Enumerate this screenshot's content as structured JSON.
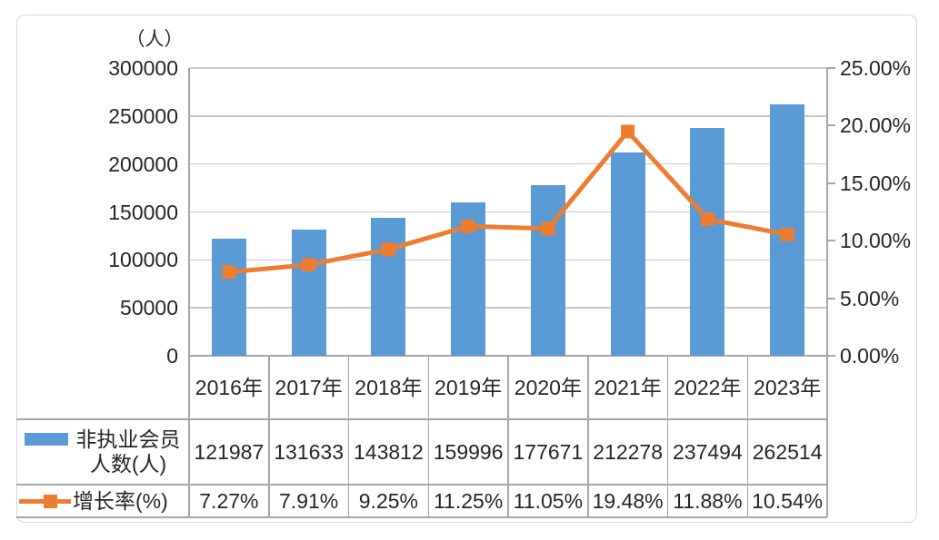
{
  "chart_data": {
    "type": "combo-bar-line",
    "categories": [
      "2016年",
      "2017年",
      "2018年",
      "2019年",
      "2020年",
      "2021年",
      "2022年",
      "2023年"
    ],
    "series": [
      {
        "name": "非执业会员人数(人)",
        "type": "bar",
        "axis": "left",
        "color": "#5b9bd5",
        "values": [
          121987,
          131633,
          143812,
          159996,
          177671,
          212278,
          237494,
          262514
        ],
        "labels": [
          "121987",
          "131633",
          "143812",
          "159996",
          "177671",
          "212278",
          "237494",
          "262514"
        ]
      },
      {
        "name": "增长率(%)",
        "type": "line",
        "axis": "right",
        "color": "#ed7d31",
        "values": [
          7.27,
          7.91,
          9.25,
          11.25,
          11.05,
          19.48,
          11.88,
          10.54
        ],
        "labels": [
          "7.27%",
          "7.91%",
          "9.25%",
          "11.25%",
          "11.05%",
          "19.48%",
          "11.88%",
          "10.54%"
        ]
      }
    ],
    "left_axis": {
      "title": "（人）",
      "min": 0,
      "max": 300000,
      "step": 50000,
      "tick_labels": [
        "0",
        "50000",
        "100000",
        "150000",
        "200000",
        "250000",
        "300000"
      ]
    },
    "right_axis": {
      "min": 0,
      "max": 25,
      "step": 5,
      "tick_labels": [
        "0.00%",
        "5.00%",
        "10.00%",
        "15.00%",
        "20.00%",
        "25.00%"
      ]
    },
    "grid": true,
    "legend_position": "data-table-left"
  },
  "legend": {
    "series1_line1": "非执业会员",
    "series1_line2": "人数(人)",
    "series2_label": "增长率(%)"
  }
}
